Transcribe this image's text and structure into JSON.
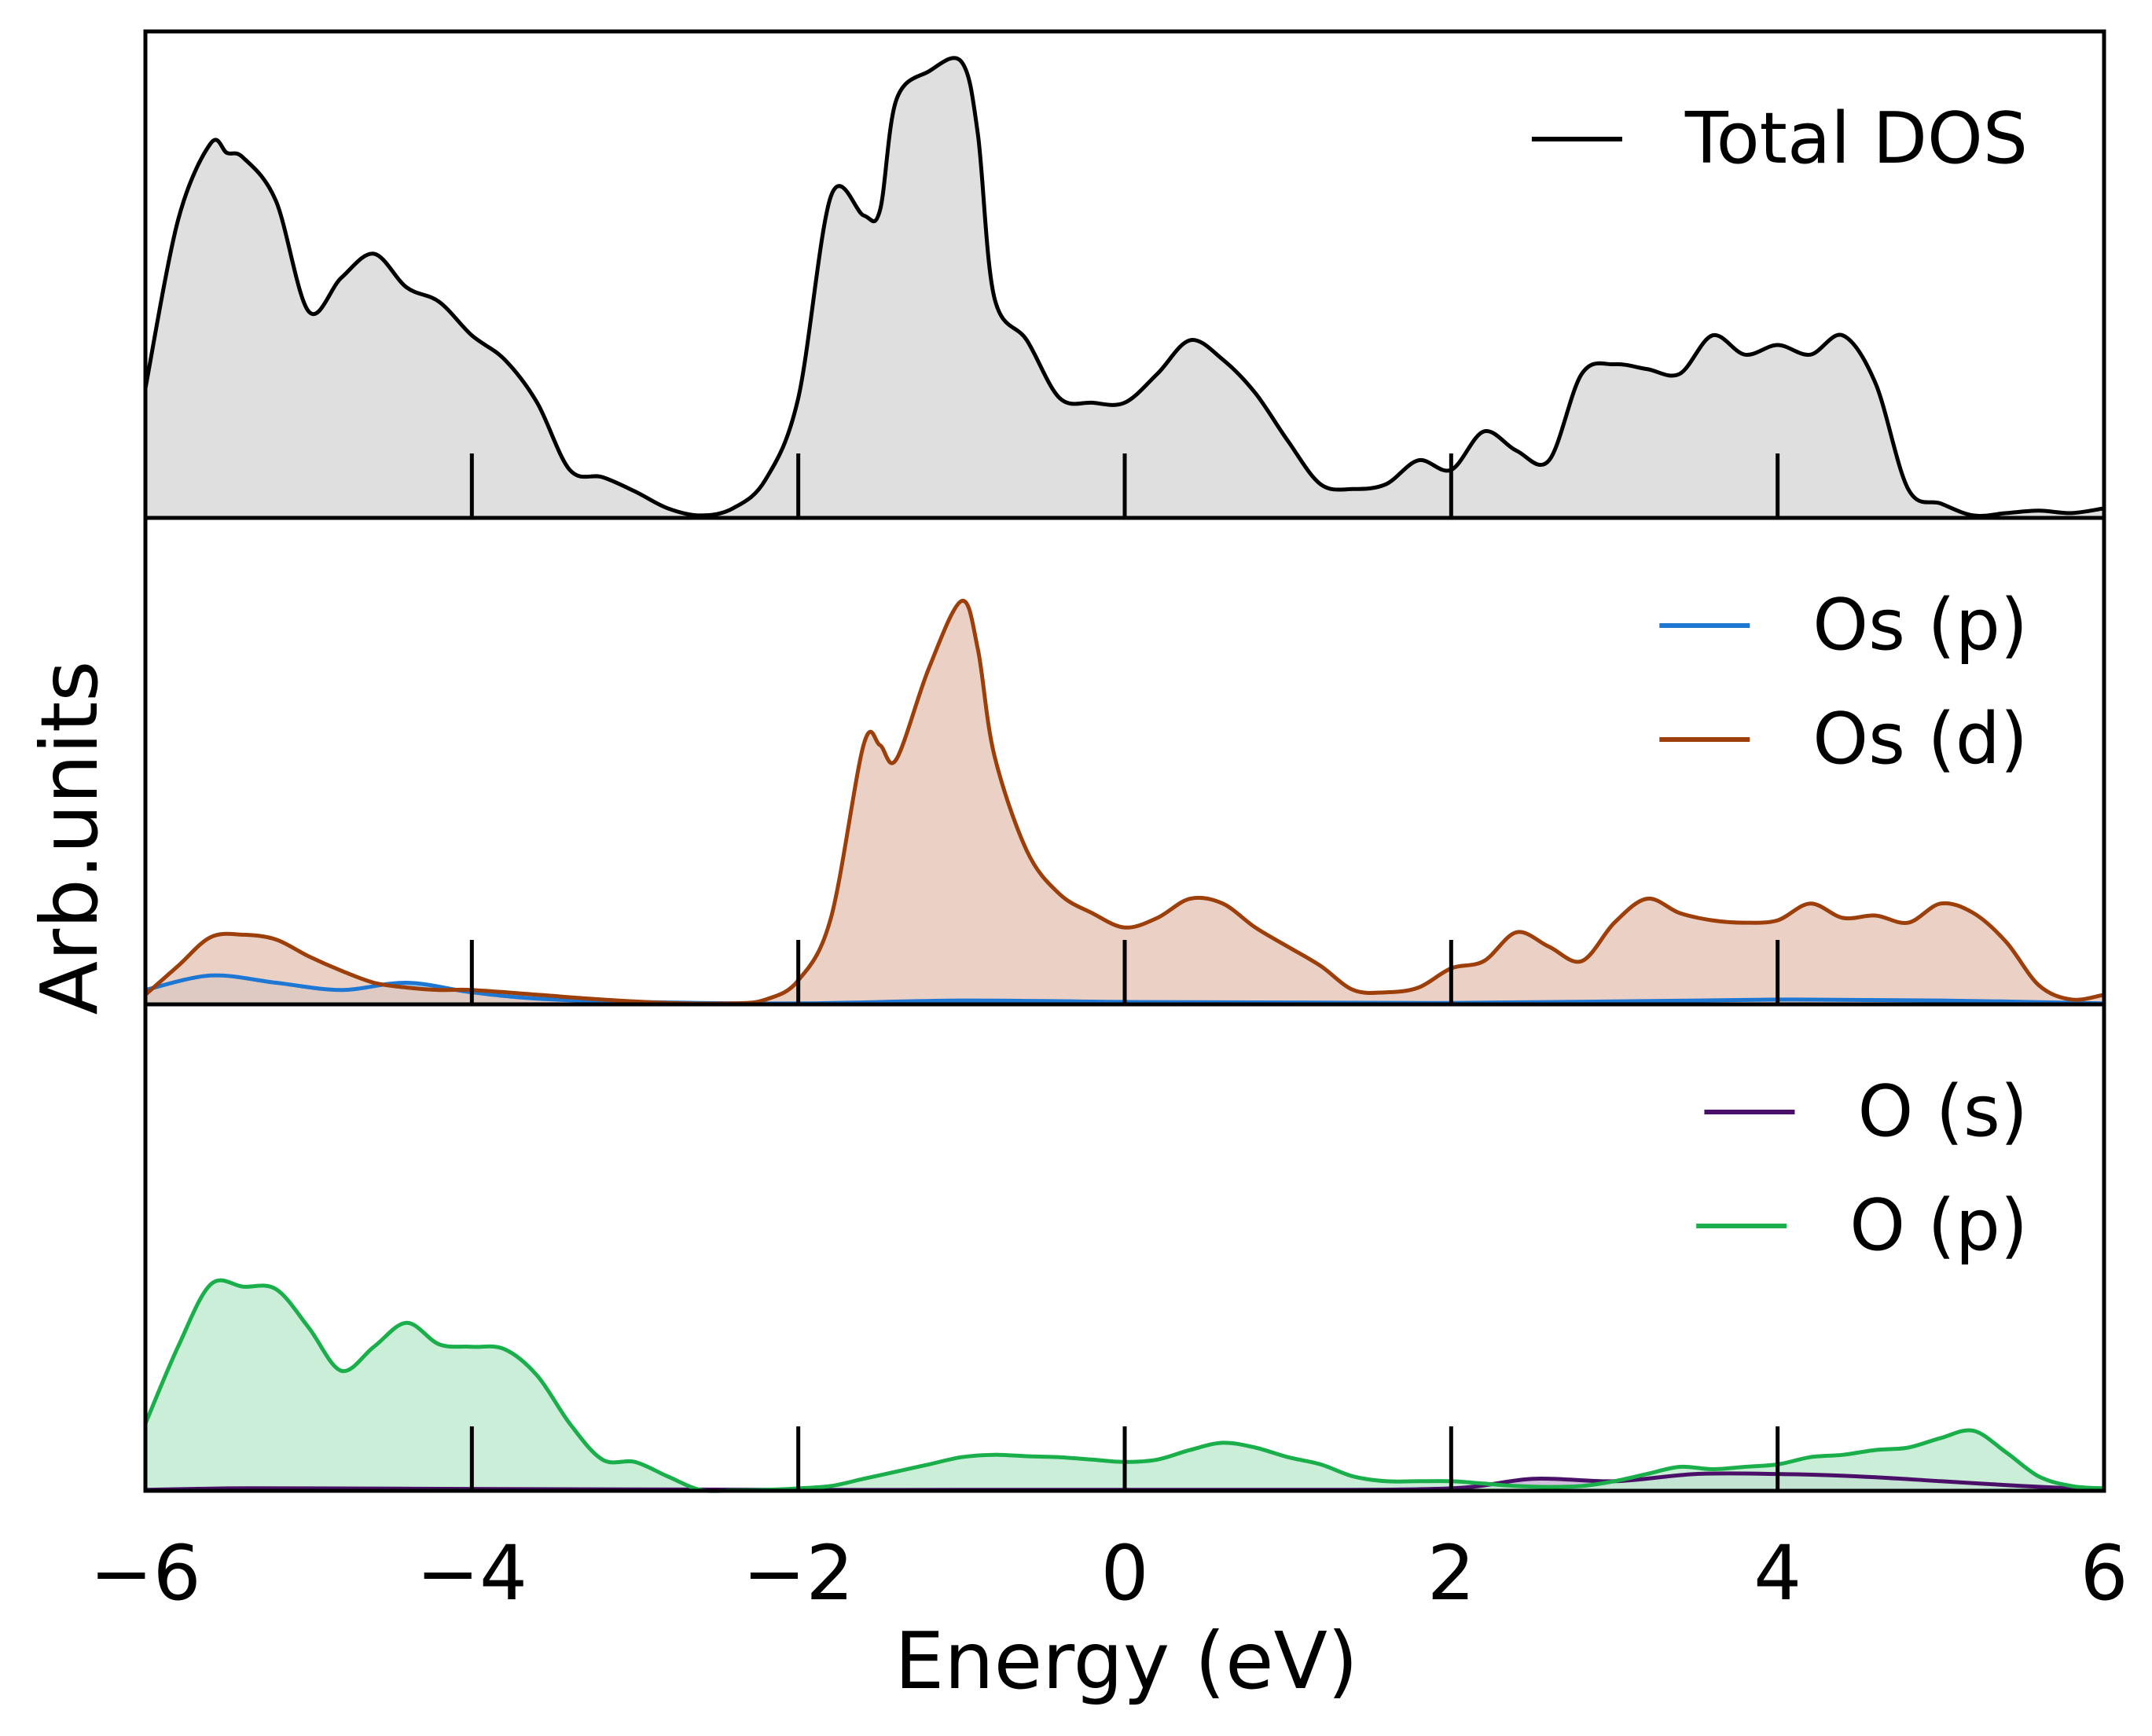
{
  "chart_data": {
    "type": "area",
    "title": "",
    "xlabel": "Energy (eV)",
    "ylabel": "Arb.units",
    "xlim": [
      -6,
      6
    ],
    "xticks": [
      -6,
      -4,
      -2,
      0,
      2,
      4,
      6
    ],
    "xtick_labels": [
      "−6",
      "−4",
      "−2",
      "0",
      "2",
      "4",
      "6"
    ],
    "panels": [
      {
        "name": "total",
        "ylim": [
          0,
          10
        ],
        "legend_position": "top-right",
        "series": [
          {
            "name": "Total DOS",
            "color": "#000000",
            "fill": "#d9d9d9",
            "x": [
              -6,
              -5.8,
              -5.6,
              -5.5,
              -5.4,
              -5.2,
              -5.0,
              -4.8,
              -4.6,
              -4.4,
              -4.2,
              -4.0,
              -3.8,
              -3.6,
              -3.4,
              -3.2,
              -3.0,
              -2.8,
              -2.6,
              -2.4,
              -2.2,
              -2.0,
              -1.8,
              -1.6,
              -1.5,
              -1.4,
              -1.2,
              -1.0,
              -0.9,
              -0.8,
              -0.6,
              -0.4,
              -0.2,
              0,
              0.2,
              0.4,
              0.6,
              0.8,
              1.0,
              1.2,
              1.4,
              1.6,
              1.8,
              2.0,
              2.2,
              2.4,
              2.6,
              2.8,
              3.0,
              3.2,
              3.4,
              3.6,
              3.8,
              4.0,
              4.2,
              4.4,
              4.6,
              4.8,
              5.0,
              5.2,
              5.4,
              5.6,
              5.8,
              6.0
            ],
            "y": [
              2.7,
              6.2,
              7.8,
              7.6,
              7.5,
              6.6,
              4.3,
              5.0,
              5.5,
              4.8,
              4.5,
              3.8,
              3.3,
              2.4,
              1.0,
              0.85,
              0.55,
              0.2,
              0.05,
              0.2,
              0.8,
              2.5,
              6.7,
              6.3,
              6.4,
              8.7,
              9.3,
              9.5,
              8.0,
              4.6,
              3.7,
              2.5,
              2.4,
              2.4,
              3.0,
              3.7,
              3.3,
              2.6,
              1.6,
              0.7,
              0.6,
              0.7,
              1.2,
              1.0,
              1.8,
              1.4,
              1.2,
              3.0,
              3.2,
              3.1,
              3.0,
              3.8,
              3.4,
              3.6,
              3.4,
              3.8,
              2.8,
              0.6,
              0.3,
              0.05,
              0.1,
              0.15,
              0.1,
              0.2
            ]
          }
        ]
      },
      {
        "name": "os",
        "ylim": [
          0,
          10
        ],
        "legend_position": "top-right",
        "series": [
          {
            "name": "Os (p)",
            "color": "#1f77d4",
            "fill": "#9ec6ef",
            "x": [
              -6,
              -5.6,
              -5.2,
              -4.8,
              -4.4,
              -4.0,
              -3.6,
              -3.0,
              -2.0,
              -1.0,
              0,
              1.0,
              2.0,
              3.0,
              4.0,
              5.0,
              6.0
            ],
            "y": [
              0.3,
              0.6,
              0.45,
              0.3,
              0.45,
              0.25,
              0.12,
              0.05,
              0.02,
              0.08,
              0.05,
              0.04,
              0.03,
              0.06,
              0.1,
              0.08,
              0.02
            ]
          },
          {
            "name": "Os (d)",
            "color": "#9c3f0a",
            "fill": "#e7c9bb",
            "x": [
              -6,
              -5.8,
              -5.6,
              -5.4,
              -5.2,
              -5.0,
              -4.8,
              -4.6,
              -4.4,
              -4.2,
              -4.0,
              -3.6,
              -3.2,
              -2.8,
              -2.4,
              -2.2,
              -2.0,
              -1.8,
              -1.6,
              -1.5,
              -1.4,
              -1.2,
              -1.0,
              -0.9,
              -0.8,
              -0.6,
              -0.4,
              -0.2,
              0,
              0.2,
              0.4,
              0.6,
              0.8,
              1.0,
              1.2,
              1.4,
              1.6,
              1.8,
              2.0,
              2.2,
              2.4,
              2.6,
              2.8,
              3.0,
              3.2,
              3.4,
              3.6,
              3.8,
              4.0,
              4.2,
              4.4,
              4.6,
              4.8,
              5.0,
              5.2,
              5.4,
              5.6,
              5.8,
              6.0
            ],
            "y": [
              0.2,
              0.8,
              1.4,
              1.45,
              1.35,
              1.0,
              0.7,
              0.45,
              0.35,
              0.3,
              0.3,
              0.2,
              0.1,
              0.03,
              0.02,
              0.1,
              0.5,
              1.8,
              5.4,
              5.4,
              5.1,
              7.0,
              8.4,
              7.4,
              5.2,
              3.2,
              2.3,
              1.9,
              1.6,
              1.8,
              2.2,
              2.1,
              1.6,
              1.2,
              0.8,
              0.3,
              0.25,
              0.35,
              0.75,
              0.9,
              1.5,
              1.2,
              0.9,
              1.7,
              2.2,
              1.9,
              1.75,
              1.7,
              1.75,
              2.1,
              1.8,
              1.85,
              1.7,
              2.1,
              1.9,
              1.3,
              0.4,
              0.1,
              0.2
            ]
          }
        ]
      },
      {
        "name": "o",
        "ylim": [
          0,
          10
        ],
        "legend_position": "top-right",
        "series": [
          {
            "name": "O (s)",
            "color": "#4a1067",
            "fill": "#c9b5d6",
            "x": [
              -6,
              -5.5,
              -5.0,
              -4.0,
              -3.0,
              -2.0,
              -1.0,
              0,
              1.0,
              2.0,
              2.5,
              3.0,
              3.5,
              4.0,
              4.5,
              5.0,
              5.5,
              6.0
            ],
            "y": [
              0.02,
              0.05,
              0.05,
              0.04,
              0.03,
              0.02,
              0.02,
              0.02,
              0.02,
              0.05,
              0.25,
              0.2,
              0.35,
              0.35,
              0.3,
              0.2,
              0.1,
              0.02
            ]
          },
          {
            "name": "O (p)",
            "color": "#1aaf4a",
            "fill": "#c2ebd1",
            "x": [
              -6,
              -5.8,
              -5.6,
              -5.4,
              -5.2,
              -5.0,
              -4.8,
              -4.6,
              -4.4,
              -4.2,
              -4.0,
              -3.8,
              -3.6,
              -3.4,
              -3.2,
              -3.0,
              -2.8,
              -2.6,
              -2.4,
              -2.2,
              -2.0,
              -1.8,
              -1.6,
              -1.4,
              -1.2,
              -1.0,
              -0.8,
              -0.6,
              -0.4,
              -0.2,
              0,
              0.2,
              0.4,
              0.6,
              0.8,
              1.0,
              1.2,
              1.4,
              1.6,
              1.8,
              2.0,
              2.2,
              2.4,
              2.6,
              2.8,
              3.0,
              3.2,
              3.4,
              3.6,
              3.8,
              4.0,
              4.2,
              4.4,
              4.6,
              4.8,
              5.0,
              5.2,
              5.4,
              5.6,
              5.8,
              6.0
            ],
            "y": [
              1.4,
              3.0,
              4.3,
              4.25,
              4.2,
              3.4,
              2.5,
              3.0,
              3.5,
              3.05,
              3.0,
              2.95,
              2.4,
              1.4,
              0.65,
              0.6,
              0.3,
              0.02,
              0.01,
              0.02,
              0.05,
              0.1,
              0.25,
              0.4,
              0.55,
              0.7,
              0.75,
              0.72,
              0.7,
              0.65,
              0.6,
              0.65,
              0.85,
              1.0,
              0.9,
              0.7,
              0.55,
              0.3,
              0.2,
              0.2,
              0.2,
              0.15,
              0.1,
              0.08,
              0.1,
              0.2,
              0.35,
              0.5,
              0.45,
              0.5,
              0.55,
              0.7,
              0.75,
              0.85,
              0.9,
              1.1,
              1.25,
              0.8,
              0.3,
              0.1,
              0.05
            ]
          }
        ]
      }
    ]
  }
}
